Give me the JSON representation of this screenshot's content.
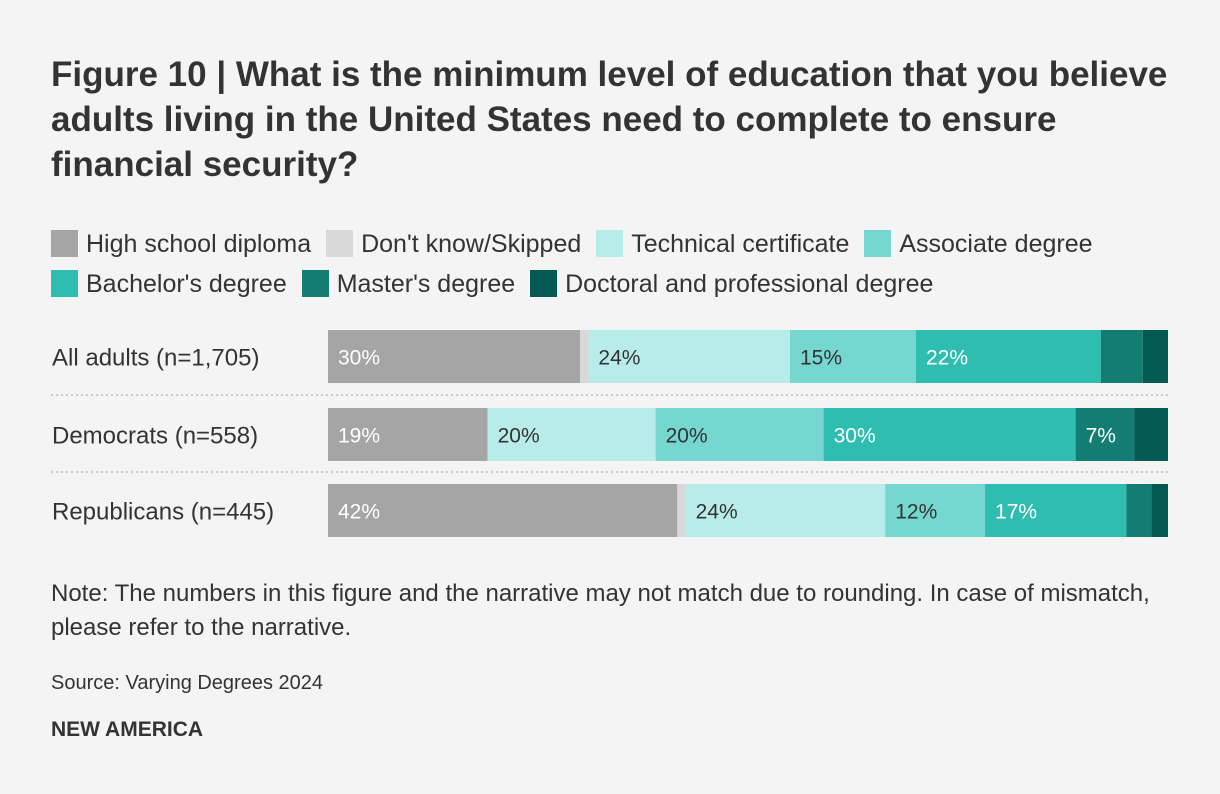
{
  "figure": {
    "title": "Figure 10 | What is the minimum level of education that you believe adults living in the United States need to complete to ensure financial security?",
    "note": "Note: The numbers in this figure and the narrative may not match due to rounding. In case of mismatch, please refer to the narrative.",
    "source": "Source: Varying Degrees 2024",
    "brand": "NEW AMERICA"
  },
  "chart_data": {
    "type": "bar",
    "orientation": "horizontal",
    "stacked": true,
    "normalized_percent": true,
    "title": "Figure 10 | What is the minimum level of education that you believe adults living in the United States need to complete to ensure financial security?",
    "legend_position": "top",
    "grid": false,
    "xlim": [
      0,
      100
    ],
    "categories": [
      "All adults (n=1,705)",
      "Democrats (n=558)",
      "Republicans (n=445)"
    ],
    "series": [
      {
        "name": "High school diploma",
        "color": "#a5a5a5",
        "label_color": "#ffffff",
        "values": [
          30,
          19,
          42
        ]
      },
      {
        "name": "Don't know/Skipped",
        "color": "#d8d8d8",
        "label_color": "#333333",
        "values": [
          1,
          0,
          1
        ]
      },
      {
        "name": "Technical certificate",
        "color": "#b8ece8",
        "label_color": "#333333",
        "values": [
          24,
          20,
          24
        ]
      },
      {
        "name": "Associate degree",
        "color": "#76d6d0",
        "label_color": "#333333",
        "values": [
          15,
          20,
          12
        ]
      },
      {
        "name": "Bachelor's degree",
        "color": "#2fbdb2",
        "label_color": "#ffffff",
        "values": [
          22,
          30,
          17
        ]
      },
      {
        "name": "Master's degree",
        "color": "#137d73",
        "label_color": "#ffffff",
        "values": [
          5,
          7,
          3
        ]
      },
      {
        "name": "Doctoral and professional degree",
        "color": "#035a52",
        "label_color": "#ffffff",
        "values": [
          3,
          4,
          2
        ]
      }
    ],
    "labels": [
      [
        "30%",
        "",
        "24%",
        "15%",
        "22%",
        "",
        ""
      ],
      [
        "19%",
        "",
        "20%",
        "20%",
        "30%",
        "7%",
        ""
      ],
      [
        "42%",
        "",
        "24%",
        "12%",
        "17%",
        "",
        ""
      ]
    ]
  }
}
